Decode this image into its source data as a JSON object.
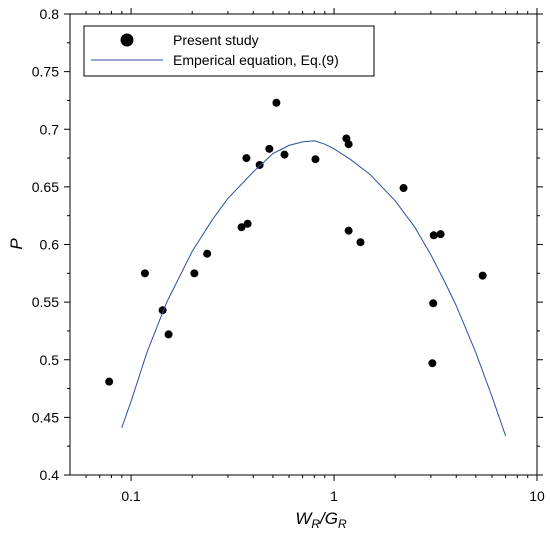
{
  "chart_data": {
    "type": "scatter",
    "x_scale": "log",
    "xlim": [
      0.05,
      10
    ],
    "ylim": [
      0.4,
      0.8
    ],
    "x_major_ticks": [
      {
        "value": 0.1,
        "label": "0.1"
      },
      {
        "value": 1,
        "label": "1"
      },
      {
        "value": 10,
        "label": "10"
      }
    ],
    "y_ticks": [
      {
        "value": 0.4,
        "label": "0.4"
      },
      {
        "value": 0.45,
        "label": "0.45"
      },
      {
        "value": 0.5,
        "label": "0.5"
      },
      {
        "value": 0.55,
        "label": "0.55"
      },
      {
        "value": 0.6,
        "label": "0.6"
      },
      {
        "value": 0.65,
        "label": "0.65"
      },
      {
        "value": 0.7,
        "label": "0.7"
      },
      {
        "value": 0.75,
        "label": "0.75"
      },
      {
        "value": 0.8,
        "label": "0.8"
      }
    ],
    "ylabel": "P",
    "xlabel": {
      "main1": "W",
      "sub1": "R",
      "slash": "/",
      "main2": "G",
      "sub2": "R"
    },
    "grid": false,
    "legend_position": "top-left",
    "series": [
      {
        "name": "Present study",
        "kind": "scatter",
        "color": "#000000",
        "points": [
          [
            0.078,
            0.481
          ],
          [
            0.117,
            0.575
          ],
          [
            0.143,
            0.543
          ],
          [
            0.153,
            0.522
          ],
          [
            0.205,
            0.575
          ],
          [
            0.237,
            0.592
          ],
          [
            0.35,
            0.615
          ],
          [
            0.37,
            0.675
          ],
          [
            0.375,
            0.618
          ],
          [
            0.43,
            0.669
          ],
          [
            0.48,
            0.683
          ],
          [
            0.52,
            0.723
          ],
          [
            0.57,
            0.678
          ],
          [
            0.81,
            0.674
          ],
          [
            1.15,
            0.692
          ],
          [
            1.18,
            0.687
          ],
          [
            1.18,
            0.612
          ],
          [
            1.35,
            0.602
          ],
          [
            2.2,
            0.649
          ],
          [
            3.05,
            0.497
          ],
          [
            3.08,
            0.549
          ],
          [
            3.1,
            0.608
          ],
          [
            3.35,
            0.609
          ],
          [
            5.4,
            0.573
          ]
        ]
      },
      {
        "name": "Emperical equation, Eq.(9)",
        "kind": "line",
        "color": "#2b4fa5",
        "points": [
          [
            0.09,
            0.441
          ],
          [
            0.1,
            0.464
          ],
          [
            0.12,
            0.507
          ],
          [
            0.15,
            0.55
          ],
          [
            0.2,
            0.594
          ],
          [
            0.25,
            0.621
          ],
          [
            0.3,
            0.64
          ],
          [
            0.4,
            0.663
          ],
          [
            0.5,
            0.679
          ],
          [
            0.6,
            0.686
          ],
          [
            0.7,
            0.689
          ],
          [
            0.8,
            0.69
          ],
          [
            0.9,
            0.687
          ],
          [
            1.0,
            0.683
          ],
          [
            1.2,
            0.674
          ],
          [
            1.5,
            0.661
          ],
          [
            2.0,
            0.638
          ],
          [
            2.5,
            0.615
          ],
          [
            3.0,
            0.591
          ],
          [
            3.5,
            0.568
          ],
          [
            4.0,
            0.547
          ],
          [
            5.0,
            0.506
          ],
          [
            6.0,
            0.468
          ],
          [
            7.0,
            0.434
          ]
        ]
      }
    ]
  }
}
